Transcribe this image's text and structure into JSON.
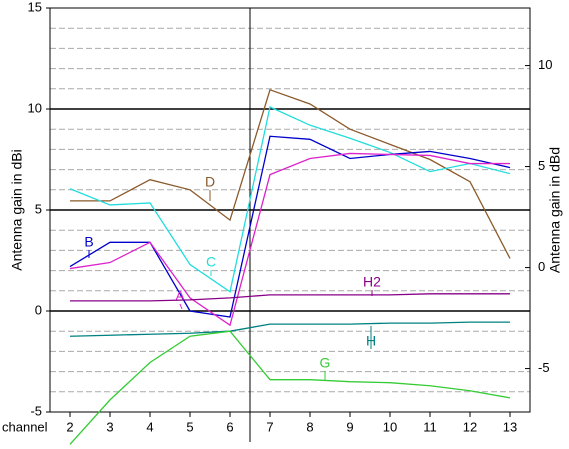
{
  "chart_data": {
    "type": "line",
    "x_label": "channel",
    "y_label": "Antenna gain  in dBi",
    "y2_label": "Antenna gain  in dBd",
    "x": [
      2,
      3,
      4,
      5,
      6,
      7,
      8,
      9,
      10,
      11,
      12,
      13
    ],
    "xticks": [
      2,
      3,
      4,
      5,
      6,
      7,
      8,
      9,
      10,
      11,
      12,
      13
    ],
    "xlim": [
      1.5,
      13.5
    ],
    "ylim": [
      -5,
      15
    ],
    "yticks": [
      -5,
      0,
      5,
      10,
      15
    ],
    "major_grid": [
      0,
      5,
      10
    ],
    "minor_yticks": [
      -4,
      -3,
      -2,
      -1,
      1,
      2,
      3,
      4,
      6,
      7,
      8,
      9,
      11,
      12,
      13,
      14
    ],
    "y2lim": [
      -7.15,
      12.85
    ],
    "y2ticks": [
      -5,
      0,
      5,
      10
    ],
    "vline": 6.5,
    "series": [
      {
        "name": "D",
        "color": "#8b5a2b",
        "values": [
          5.45,
          5.45,
          6.5,
          6.0,
          4.5,
          10.95,
          10.25,
          9.0,
          8.25,
          7.5,
          6.4,
          2.6
        ]
      },
      {
        "name": "C",
        "color": "#22dddd",
        "values": [
          6.05,
          5.25,
          5.35,
          2.3,
          0.95,
          10.1,
          9.2,
          8.55,
          7.85,
          6.9,
          7.3,
          6.8
        ]
      },
      {
        "name": "B",
        "color": "#0000cc",
        "values": [
          2.2,
          3.4,
          3.4,
          0.0,
          -0.3,
          8.65,
          8.5,
          7.55,
          7.75,
          7.9,
          7.55,
          7.1
        ]
      },
      {
        "name": "A",
        "color": "#dd22cc",
        "values": [
          2.1,
          2.4,
          3.4,
          0.65,
          -0.7,
          6.75,
          7.55,
          7.8,
          7.75,
          7.7,
          7.3,
          7.3
        ]
      },
      {
        "name": "H2",
        "color": "#880088",
        "values": [
          0.5,
          0.5,
          0.5,
          0.55,
          0.65,
          0.8,
          0.8,
          0.8,
          0.8,
          0.85,
          0.85,
          0.85
        ]
      },
      {
        "name": "H",
        "color": "#008080",
        "values": [
          -1.25,
          -1.2,
          -1.15,
          -1.1,
          -1.0,
          -0.65,
          -0.65,
          -0.65,
          -0.6,
          -0.6,
          -0.55,
          -0.55
        ]
      },
      {
        "name": "G",
        "color": "#33cc33",
        "values": [
          -6.6,
          -4.4,
          -2.55,
          -1.25,
          -1.0,
          -3.4,
          -3.4,
          -3.5,
          -3.55,
          -3.7,
          -3.95,
          -4.3
        ]
      }
    ]
  }
}
